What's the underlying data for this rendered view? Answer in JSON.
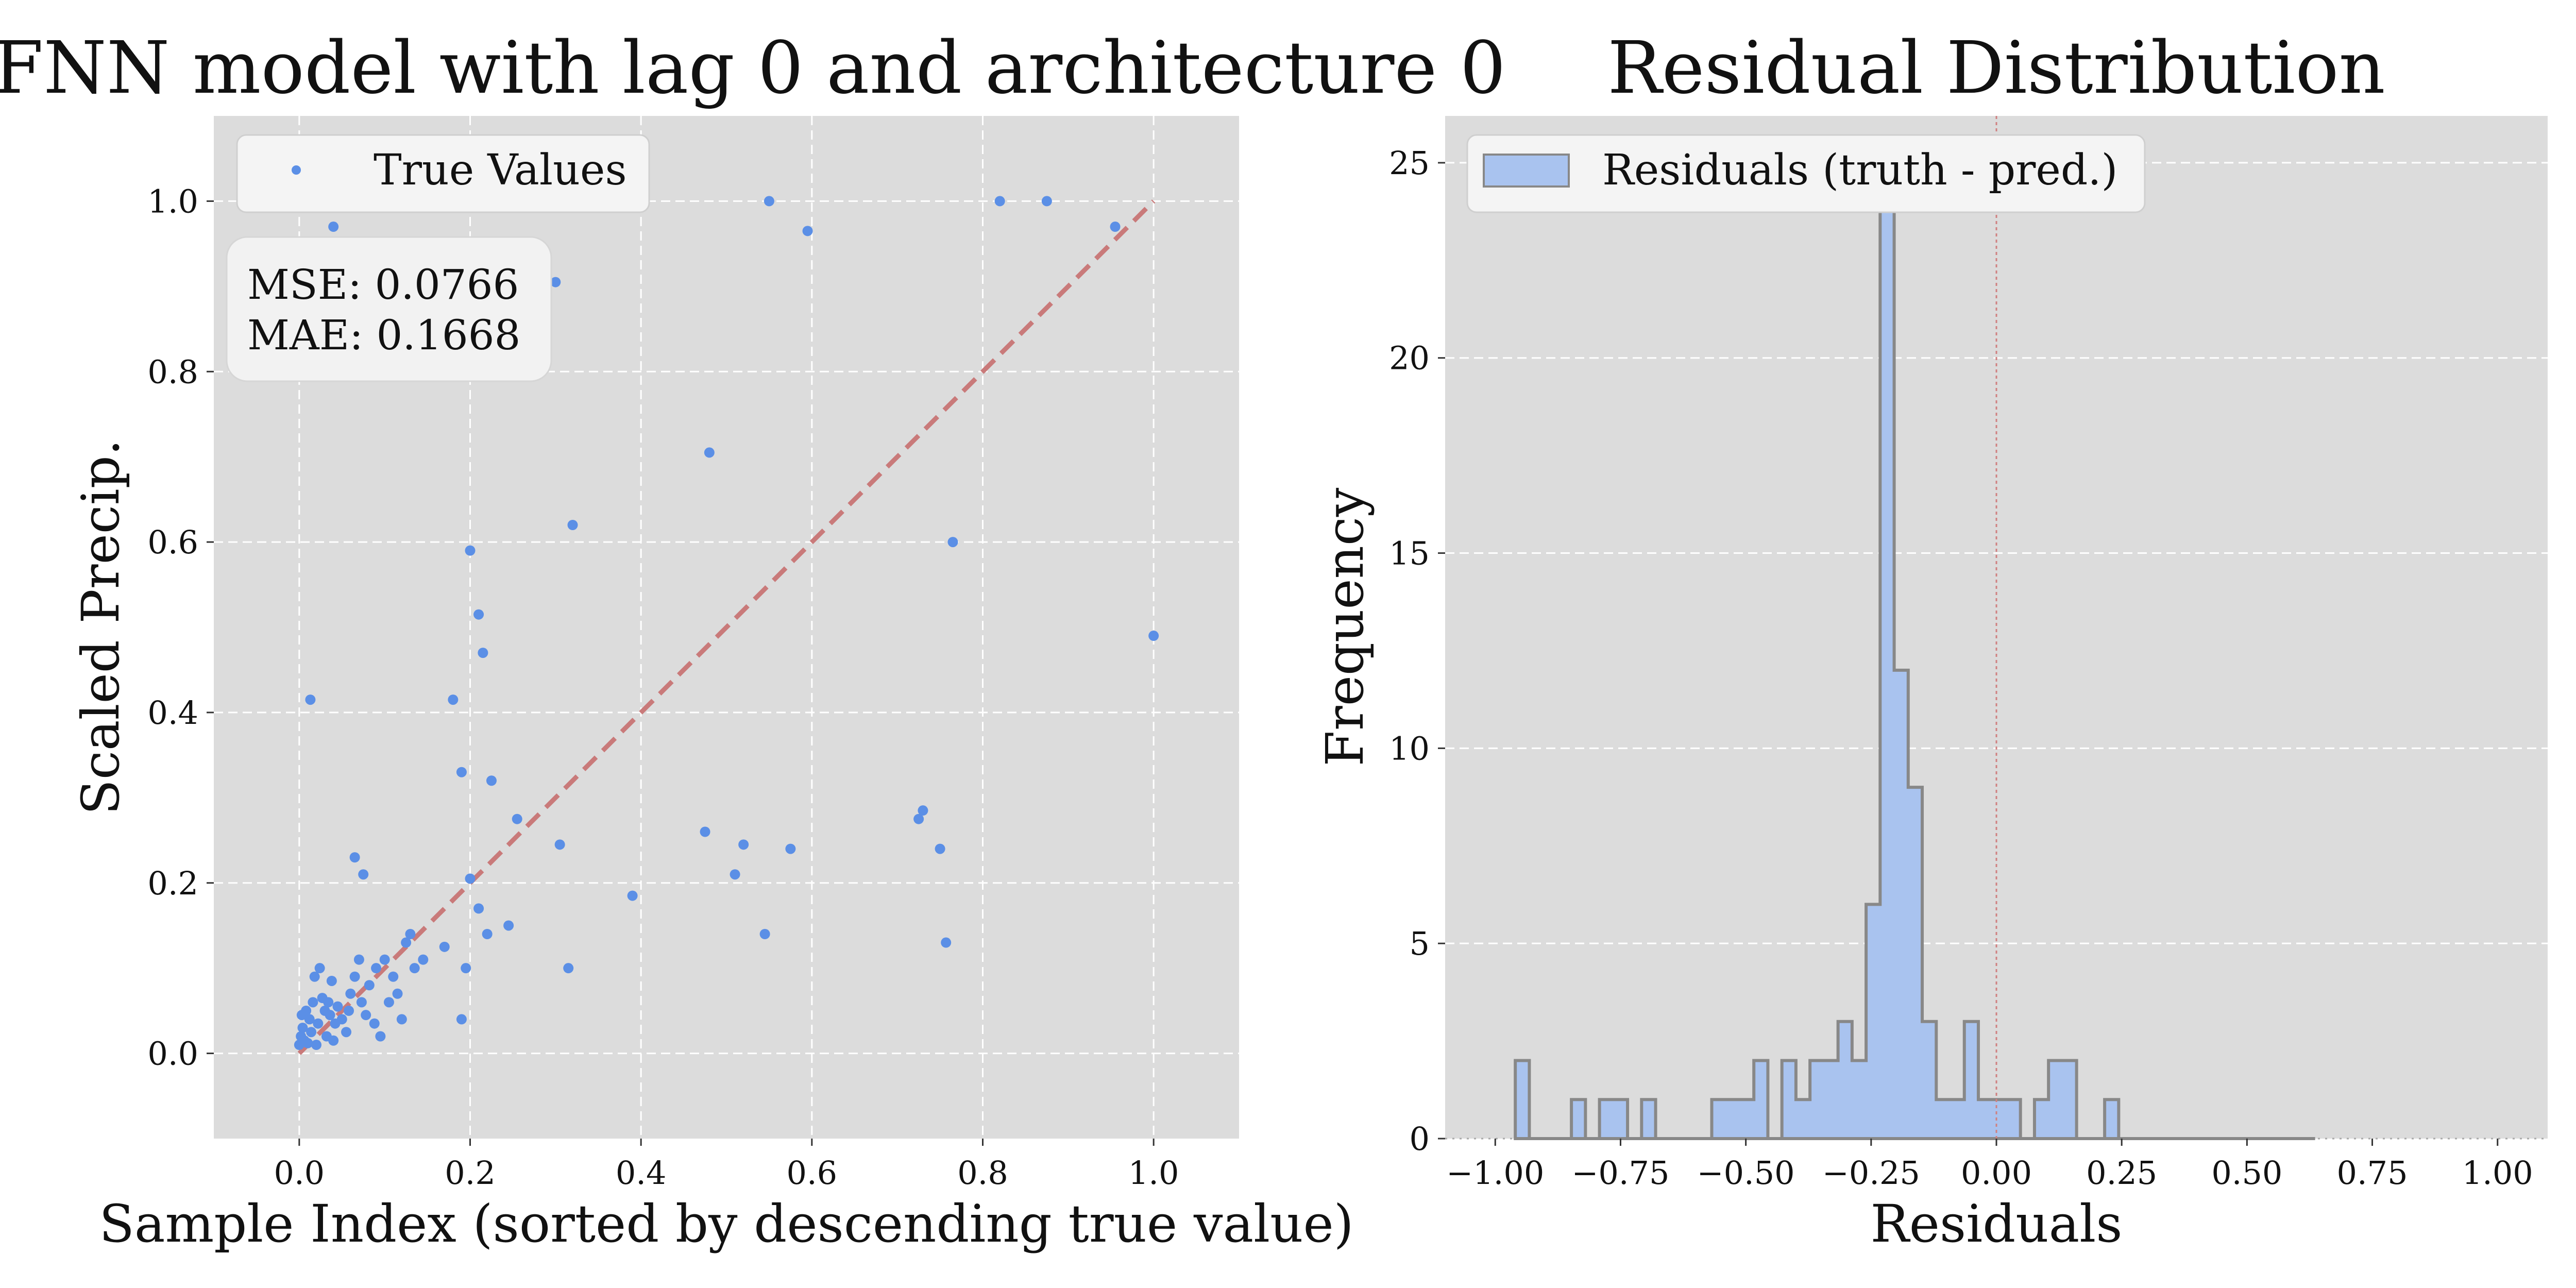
{
  "chart_data": [
    {
      "type": "scatter",
      "title": "FNN model with lag 0 and architecture 0",
      "xlabel": "Sample Index (sorted by descending true value)",
      "ylabel": "Scaled Precip.",
      "xlim": [
        -0.1,
        1.1
      ],
      "ylim": [
        -0.1,
        1.1
      ],
      "xticks": [
        "0.0",
        "0.2",
        "0.4",
        "0.6",
        "0.8",
        "1.0"
      ],
      "yticks": [
        "0.0",
        "0.2",
        "0.4",
        "0.6",
        "0.8",
        "1.0"
      ],
      "grid": true,
      "legend": {
        "position": "upper-left",
        "entries": [
          "True Values"
        ]
      },
      "annotation": {
        "lines": [
          "MSE: 0.0766",
          "MAE: 0.1668"
        ]
      },
      "reference_line": {
        "from": [
          0.0,
          0.0
        ],
        "to": [
          1.0,
          1.0
        ],
        "style": "dashed",
        "color": "#c97a7a"
      },
      "point_color": "#5b8fe6",
      "series": [
        {
          "name": "True Values",
          "points": [
            [
              0.0,
              0.01
            ],
            [
              0.002,
              0.02
            ],
            [
              0.004,
              0.03
            ],
            [
              0.003,
              0.045
            ],
            [
              0.006,
              0.015
            ],
            [
              0.008,
              0.05
            ],
            [
              0.01,
              0.012
            ],
            [
              0.012,
              0.04
            ],
            [
              0.014,
              0.025
            ],
            [
              0.016,
              0.06
            ],
            [
              0.018,
              0.09
            ],
            [
              0.02,
              0.01
            ],
            [
              0.022,
              0.035
            ],
            [
              0.024,
              0.1
            ],
            [
              0.027,
              0.065
            ],
            [
              0.03,
              0.05
            ],
            [
              0.032,
              0.02
            ],
            [
              0.034,
              0.06
            ],
            [
              0.036,
              0.045
            ],
            [
              0.038,
              0.085
            ],
            [
              0.04,
              0.015
            ],
            [
              0.042,
              0.035
            ],
            [
              0.045,
              0.055
            ],
            [
              0.05,
              0.04
            ],
            [
              0.055,
              0.025
            ],
            [
              0.058,
              0.05
            ],
            [
              0.06,
              0.07
            ],
            [
              0.065,
              0.09
            ],
            [
              0.07,
              0.11
            ],
            [
              0.073,
              0.06
            ],
            [
              0.078,
              0.045
            ],
            [
              0.082,
              0.08
            ],
            [
              0.088,
              0.035
            ],
            [
              0.09,
              0.1
            ],
            [
              0.095,
              0.02
            ],
            [
              0.1,
              0.11
            ],
            [
              0.105,
              0.06
            ],
            [
              0.11,
              0.09
            ],
            [
              0.115,
              0.07
            ],
            [
              0.12,
              0.04
            ],
            [
              0.125,
              0.13
            ],
            [
              0.13,
              0.14
            ],
            [
              0.135,
              0.1
            ],
            [
              0.145,
              0.11
            ],
            [
              0.17,
              0.125
            ],
            [
              0.19,
              0.04
            ],
            [
              0.195,
              0.1
            ],
            [
              0.2,
              0.205
            ],
            [
              0.21,
              0.17
            ],
            [
              0.22,
              0.14
            ],
            [
              0.245,
              0.15
            ],
            [
              0.255,
              0.275
            ],
            [
              0.19,
              0.33
            ],
            [
              0.225,
              0.32
            ],
            [
              0.18,
              0.415
            ],
            [
              0.013,
              0.415
            ],
            [
              0.065,
              0.23
            ],
            [
              0.075,
              0.21
            ],
            [
              0.2,
              0.59
            ],
            [
              0.21,
              0.515
            ],
            [
              0.215,
              0.47
            ],
            [
              0.305,
              0.245
            ],
            [
              0.315,
              0.1
            ],
            [
              0.39,
              0.185
            ],
            [
              0.475,
              0.26
            ],
            [
              0.48,
              0.705
            ],
            [
              0.51,
              0.21
            ],
            [
              0.52,
              0.245
            ],
            [
              0.545,
              0.14
            ],
            [
              0.575,
              0.24
            ],
            [
              0.32,
              0.62
            ],
            [
              0.3,
              0.905
            ],
            [
              0.04,
              0.97
            ],
            [
              0.065,
              1.0
            ],
            [
              0.17,
              1.0
            ],
            [
              0.25,
              1.0
            ],
            [
              0.305,
              0.995
            ],
            [
              0.55,
              1.0
            ],
            [
              0.595,
              0.965
            ],
            [
              0.82,
              1.0
            ],
            [
              0.875,
              1.0
            ],
            [
              0.955,
              0.97
            ],
            [
              0.725,
              0.275
            ],
            [
              0.73,
              0.285
            ],
            [
              0.75,
              0.24
            ],
            [
              0.757,
              0.13
            ],
            [
              0.765,
              0.6
            ],
            [
              1.0,
              0.49
            ]
          ]
        }
      ]
    },
    {
      "type": "bar",
      "subtype": "histogram-step-filled",
      "title": "Residual Distribution",
      "xlabel": "Residuals",
      "ylabel": "Frequency",
      "xlim": [
        -1.1,
        1.1
      ],
      "ylim": [
        0,
        26.2
      ],
      "xticks": [
        "−1.00",
        "−0.75",
        "−0.50",
        "−0.25",
        "0.00",
        "0.25",
        "0.50",
        "0.75",
        "1.00"
      ],
      "xtick_values": [
        -1.0,
        -0.75,
        -0.5,
        -0.25,
        0.0,
        0.25,
        0.5,
        0.75,
        1.0
      ],
      "yticks": [
        "0",
        "5",
        "10",
        "15",
        "20",
        "25"
      ],
      "ytick_values": [
        0,
        5,
        10,
        15,
        20,
        25
      ],
      "grid": "y-dashed",
      "legend": {
        "position": "upper-left",
        "entries": [
          "Residuals (truth - pred.)"
        ]
      },
      "reference_line": {
        "x": 0.0,
        "style": "dotted",
        "color": "#d08080"
      },
      "fill_color": "#a9c3ef",
      "edge_color": "#888888",
      "bin_edges": [
        -0.96,
        -0.932,
        -0.904,
        -0.876,
        -0.848,
        -0.82,
        -0.792,
        -0.764,
        -0.736,
        -0.708,
        -0.68,
        -0.652,
        -0.624,
        -0.596,
        -0.568,
        -0.54,
        -0.512,
        -0.484,
        -0.456,
        -0.428,
        -0.4,
        -0.372,
        -0.344,
        -0.316,
        -0.288,
        -0.26,
        -0.232,
        -0.204,
        -0.176,
        -0.148,
        -0.12,
        -0.092,
        -0.064,
        -0.036,
        -0.008,
        0.02,
        0.048,
        0.076,
        0.104,
        0.132,
        0.16,
        0.188,
        0.216,
        0.244,
        0.272,
        0.3,
        0.328,
        0.356,
        0.384,
        0.412,
        0.44,
        0.468,
        0.496,
        0.524,
        0.552,
        0.58,
        0.608,
        0.636
      ],
      "counts": [
        2,
        0,
        0,
        0,
        1,
        0,
        1,
        1,
        0,
        1,
        0,
        0,
        0,
        0,
        1,
        1,
        1,
        2,
        0,
        2,
        1,
        2,
        2,
        3,
        2,
        6,
        25,
        12,
        9,
        3,
        1,
        1,
        3,
        1,
        1,
        1,
        0,
        1,
        2,
        2,
        0,
        0,
        1,
        0,
        0,
        0,
        0,
        0,
        0,
        0,
        0,
        0,
        0,
        0,
        0,
        0,
        0
      ]
    }
  ]
}
